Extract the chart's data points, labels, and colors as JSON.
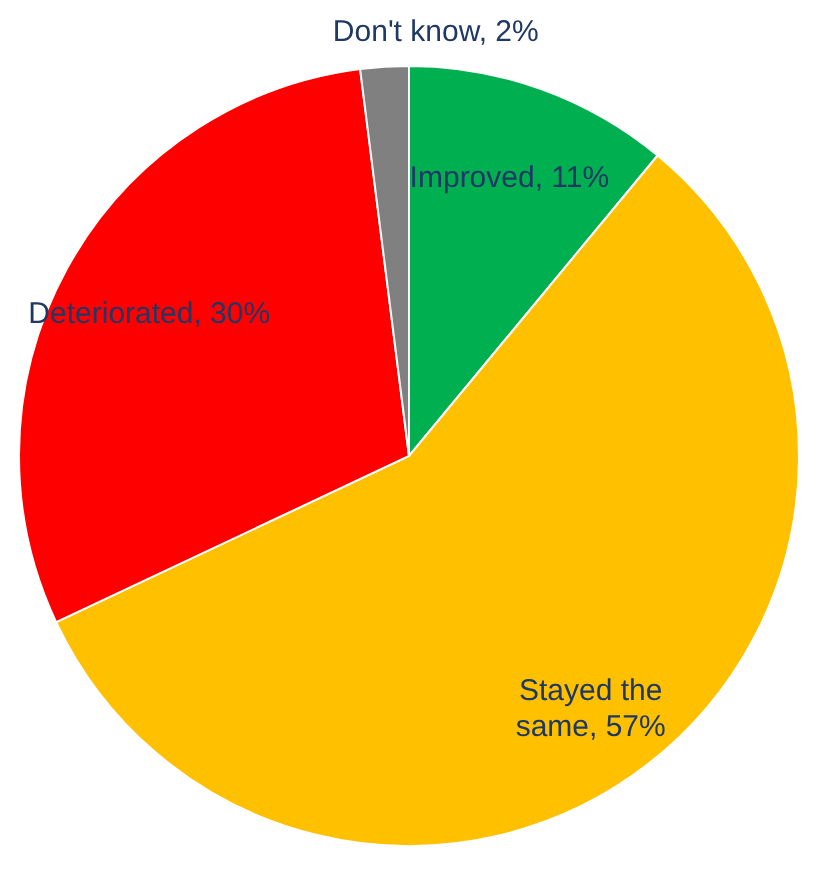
{
  "chart_data": {
    "type": "pie",
    "categories": [
      "Improved",
      "Stayed the same",
      "Deteriorated",
      "Don't know"
    ],
    "values": [
      11,
      57,
      30,
      2
    ],
    "colors": [
      "#00b050",
      "#ffc000",
      "#ff0000",
      "#808080"
    ],
    "value_labels": [
      "11%",
      "57%",
      "30%",
      "2%"
    ]
  }
}
